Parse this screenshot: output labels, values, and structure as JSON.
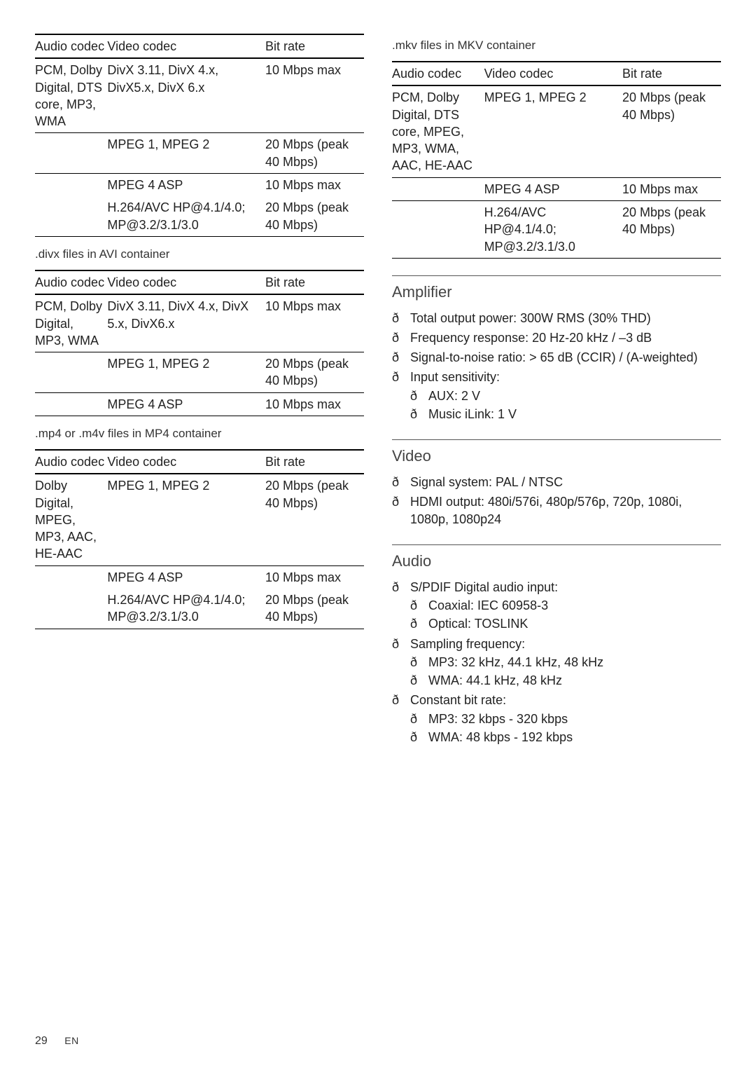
{
  "bullet_char": "ð",
  "left": {
    "tables": [
      {
        "caption": null,
        "headers": [
          "Audio codec",
          "Video codec",
          "Bit rate"
        ],
        "rows": [
          [
            "PCM, Dolby Digital, DTS core, MP3, WMA",
            "DivX 3.11, DivX 4.x, DivX5.x, DivX 6.x",
            "10 Mbps max"
          ],
          [
            "",
            "MPEG 1, MPEG 2",
            "20 Mbps (peak 40 Mbps)"
          ],
          [
            "",
            "MPEG 4 ASP",
            "10 Mbps max"
          ],
          [
            "",
            "H.264/AVC HP@4.1/4.0; MP@3.2/3.1/3.0",
            "20 Mbps (peak 40 Mbps)"
          ]
        ],
        "seps": [
          0,
          1,
          2
        ],
        "last_underline": true
      },
      {
        "caption": ".divx files in AVI container",
        "headers": [
          "Audio codec",
          "Video codec",
          "Bit rate"
        ],
        "rows": [
          [
            "PCM, Dolby Digital, MP3, WMA",
            "DivX 3.11, DivX 4.x, DivX 5.x, DivX6.x",
            "10 Mbps max"
          ],
          [
            "",
            "MPEG 1, MPEG 2",
            "20 Mbps (peak 40 Mbps)"
          ],
          [
            "",
            "MPEG 4 ASP",
            "10 Mbps max"
          ]
        ],
        "seps": [
          0,
          1,
          2
        ],
        "last_underline": true
      },
      {
        "caption": ".mp4 or .m4v files in MP4 container",
        "headers": [
          "Audio codec",
          "Video codec",
          "Bit rate"
        ],
        "rows": [
          [
            "Dolby Digital, MPEG, MP3, AAC, HE-AAC",
            "MPEG 1, MPEG 2",
            "20 Mbps (peak 40 Mbps)"
          ],
          [
            "",
            "MPEG 4 ASP",
            "10 Mbps max"
          ],
          [
            "",
            "H.264/AVC HP@4.1/4.0; MP@3.2/3.1/3.0",
            "20 Mbps (peak 40 Mbps)"
          ]
        ],
        "seps": [
          0,
          1
        ],
        "last_underline": true
      }
    ]
  },
  "right": {
    "tables": [
      {
        "caption": ".mkv files in MKV container",
        "headers": [
          "Audio codec",
          "Video codec",
          "Bit rate"
        ],
        "rows": [
          [
            "PCM, Dolby Digital, DTS core, MPEG, MP3, WMA, AAC, HE-AAC",
            "MPEG 1, MPEG 2",
            "20 Mbps (peak 40 Mbps)"
          ],
          [
            "",
            "MPEG 4 ASP",
            "10 Mbps max"
          ],
          [
            "",
            "H.264/AVC HP@4.1/4.0; MP@3.2/3.1/3.0",
            "20 Mbps (peak 40 Mbps)"
          ]
        ],
        "seps": [
          0,
          1,
          2
        ],
        "last_underline": true
      }
    ],
    "sections": [
      {
        "title": "Amplifier",
        "items": [
          {
            "text": "Total output power: 300W RMS (30% THD)"
          },
          {
            "text": "Frequency response: 20 Hz-20 kHz / –3 dB"
          },
          {
            "text": "Signal-to-noise ratio: > 65 dB (CCIR) / (A-weighted)"
          },
          {
            "text": "Input sensitivity:",
            "sub": [
              "AUX: 2 V",
              "Music iLink: 1 V"
            ]
          }
        ]
      },
      {
        "title": "Video",
        "items": [
          {
            "text": "Signal system: PAL / NTSC"
          },
          {
            "text": "HDMI output: 480i/576i, 480p/576p, 720p, 1080i, 1080p, 1080p24"
          }
        ]
      },
      {
        "title": "Audio",
        "items": [
          {
            "text": "S/PDIF Digital audio input:",
            "sub": [
              "Coaxial: IEC 60958-3",
              "Optical: TOSLINK"
            ]
          },
          {
            "text": "Sampling frequency:",
            "sub": [
              "MP3: 32 kHz, 44.1 kHz, 48 kHz",
              "WMA: 44.1 kHz, 48 kHz"
            ]
          },
          {
            "text": "Constant bit rate:",
            "sub": [
              "MP3: 32 kbps - 320 kbps",
              "WMA: 48 kbps - 192 kbps"
            ]
          }
        ]
      }
    ]
  },
  "footer": {
    "page": "29",
    "lang": "EN"
  },
  "colors": {
    "text": "#222222",
    "rule": "#000000",
    "section_rule": "#555555",
    "section_title": "#444444",
    "bg": "#ffffff"
  }
}
